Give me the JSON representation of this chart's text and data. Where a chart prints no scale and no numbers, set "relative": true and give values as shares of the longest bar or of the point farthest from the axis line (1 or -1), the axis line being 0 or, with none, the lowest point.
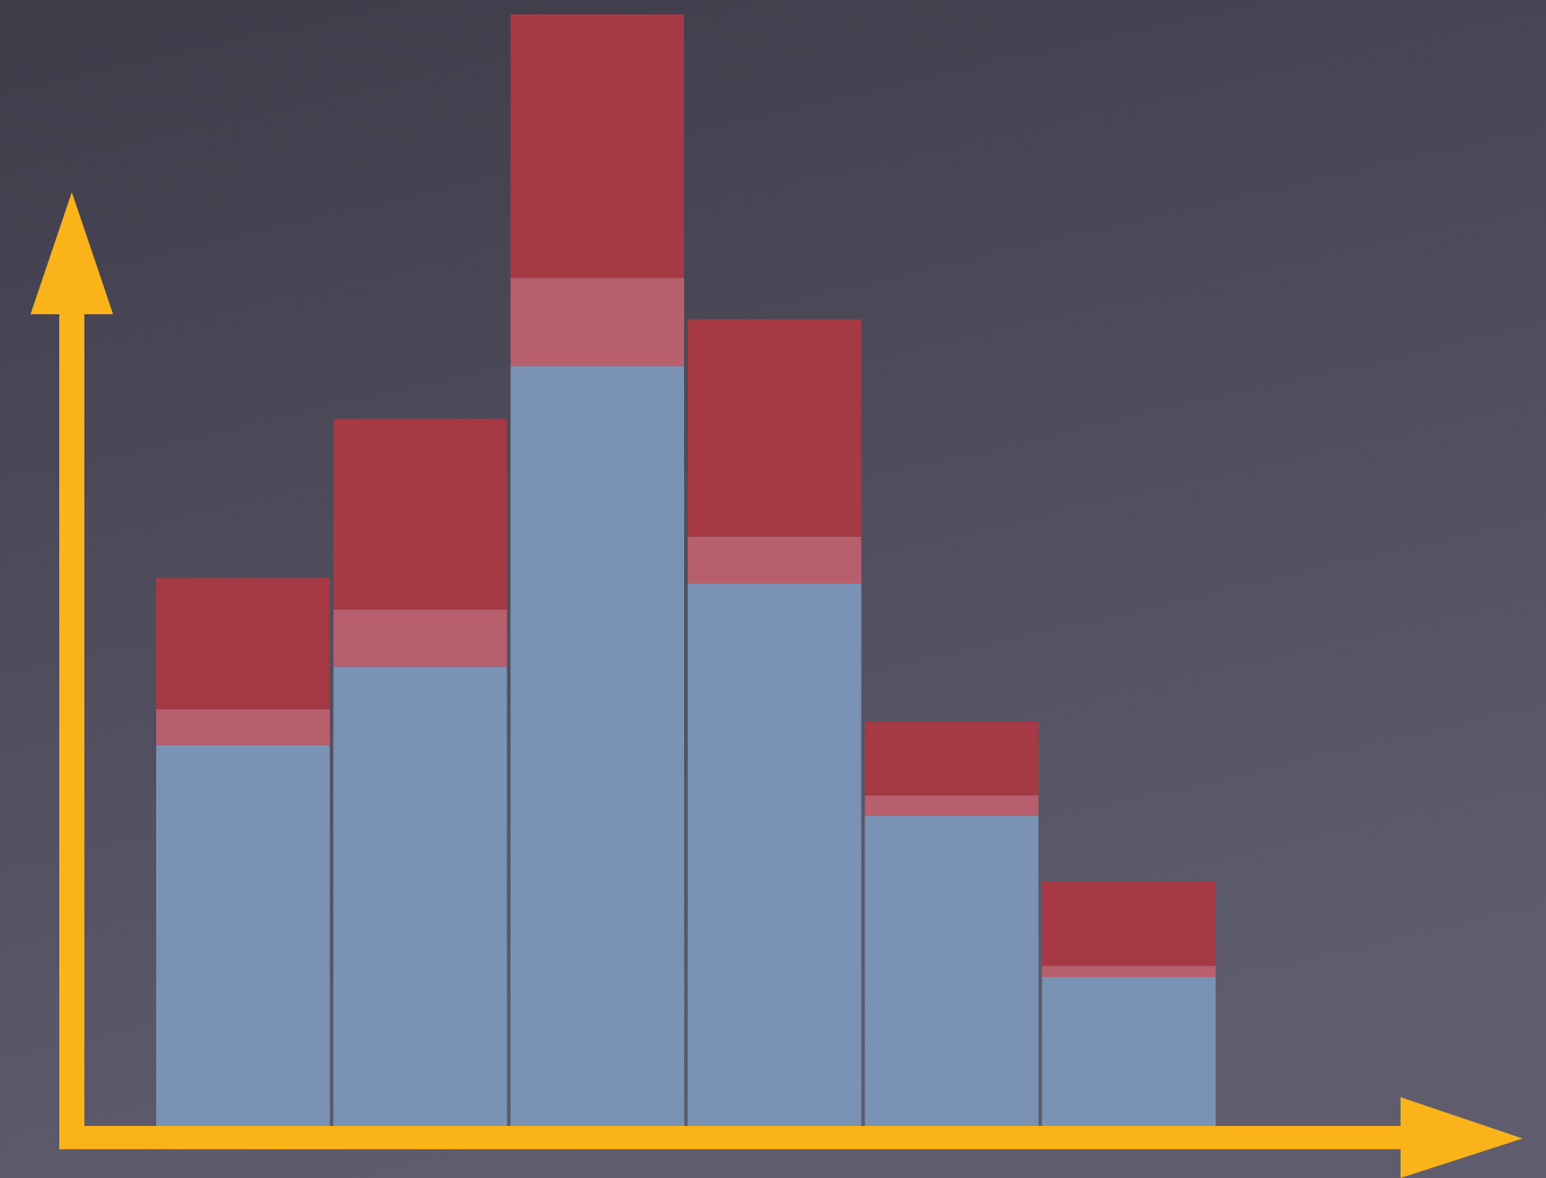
{
  "chart_data": {
    "type": "bar",
    "relative": true,
    "stacked": true,
    "categories": [
      null,
      null,
      null,
      null,
      null,
      null
    ],
    "series": [
      {
        "color": "#7a93b5",
        "values": [
          0.348,
          0.418,
          0.686,
          0.492,
          0.285,
          0.141
        ]
      },
      {
        "color": "#b85f6e",
        "values": [
          0.032,
          0.051,
          0.079,
          0.042,
          0.018,
          0.01
        ]
      },
      {
        "color": "#a53a44",
        "values": [
          0.117,
          0.17,
          0.235,
          0.194,
          0.066,
          0.075
        ]
      }
    ]
  }
}
